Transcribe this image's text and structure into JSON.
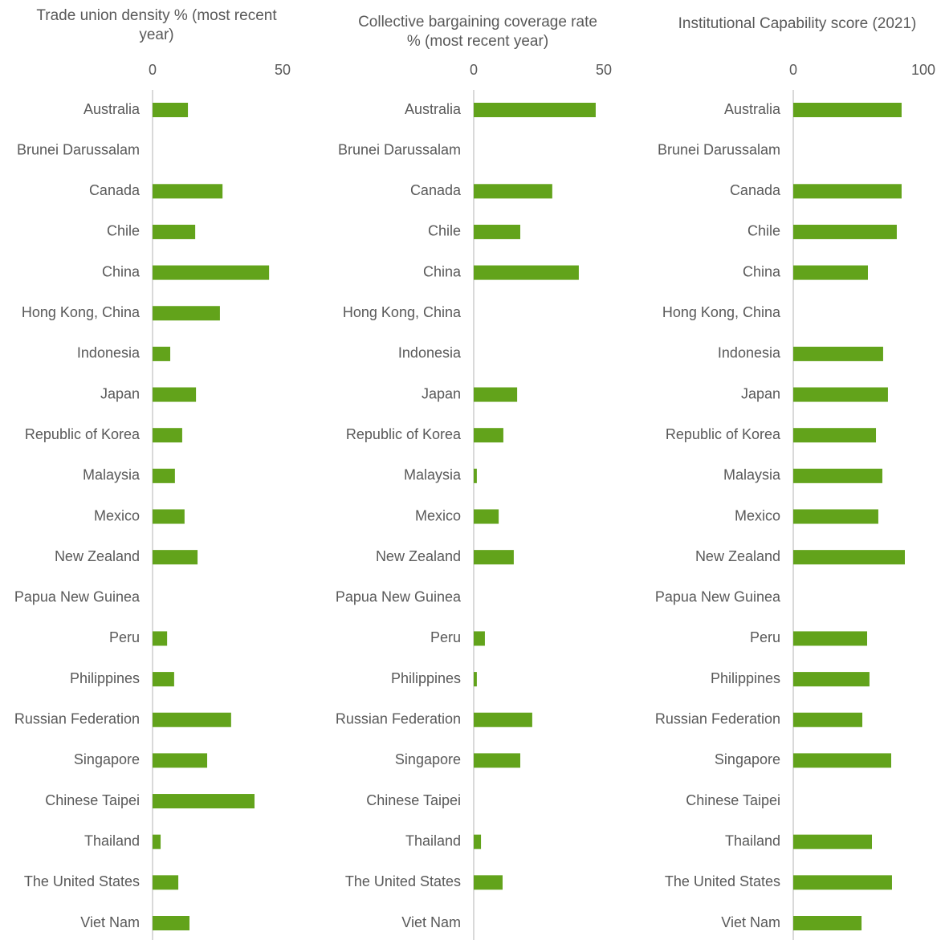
{
  "chart_data": [
    {
      "type": "bar",
      "orientation": "horizontal",
      "title": "Trade union density % (most recent year)",
      "categories": [
        "Australia",
        "Brunei Darussalam",
        "Canada",
        "Chile",
        "China",
        "Hong Kong, China",
        "Indonesia",
        "Japan",
        "Republic of Korea",
        "Malaysia",
        "Mexico",
        "New Zealand",
        "Papua New Guinea",
        "Peru",
        "Philippines",
        "Russian Federation",
        "Singapore",
        "Chinese Taipei",
        "Thailand",
        "The United States",
        "Viet Nam"
      ],
      "values": [
        13.6,
        null,
        26.9,
        16.4,
        44.8,
        25.9,
        6.8,
        16.7,
        11.4,
        8.6,
        12.3,
        17.3,
        null,
        5.6,
        8.3,
        30.2,
        21.0,
        39.2,
        3.1,
        9.9,
        14.2
      ],
      "color": "#62a31b",
      "xlim": [
        0,
        50
      ],
      "xticks": [
        0,
        50
      ]
    },
    {
      "type": "bar",
      "orientation": "horizontal",
      "title": "Collective bargaining coverage rate % (most recent year)",
      "categories": [
        "Australia",
        "Brunei Darussalam",
        "Canada",
        "Chile",
        "China",
        "Hong Kong, China",
        "Indonesia",
        "Japan",
        "Republic of Korea",
        "Malaysia",
        "Mexico",
        "New Zealand",
        "Papua New Guinea",
        "Peru",
        "Philippines",
        "Russian Federation",
        "Singapore",
        "Chinese Taipei",
        "Thailand",
        "The United States",
        "Viet Nam"
      ],
      "values": [
        46.9,
        null,
        30.2,
        17.9,
        40.4,
        null,
        null,
        16.7,
        11.4,
        1.2,
        9.6,
        15.4,
        null,
        4.3,
        1.2,
        22.5,
        17.9,
        null,
        2.8,
        11.1,
        null
      ],
      "color": "#62a31b",
      "xlim": [
        0,
        50
      ],
      "xticks": [
        0,
        50
      ]
    },
    {
      "type": "bar",
      "orientation": "horizontal",
      "title": "Institutional Capability score (2021)",
      "categories": [
        "Australia",
        "Brunei Darussalam",
        "Canada",
        "Chile",
        "China",
        "Hong Kong, China",
        "Indonesia",
        "Japan",
        "Republic of Korea",
        "Malaysia",
        "Mexico",
        "New Zealand",
        "Papua New Guinea",
        "Peru",
        "Philippines",
        "Russian Federation",
        "Singapore",
        "Chinese Taipei",
        "Thailand",
        "The United States",
        "Viet Nam"
      ],
      "values": [
        83.3,
        null,
        83.3,
        79.6,
        57.4,
        null,
        69.1,
        72.8,
        63.6,
        68.5,
        65.4,
        85.8,
        null,
        56.8,
        58.6,
        53.1,
        75.3,
        null,
        60.5,
        75.9,
        52.5
      ],
      "color": "#62a31b",
      "xlim": [
        0,
        100
      ],
      "xticks": [
        0,
        100
      ]
    }
  ]
}
